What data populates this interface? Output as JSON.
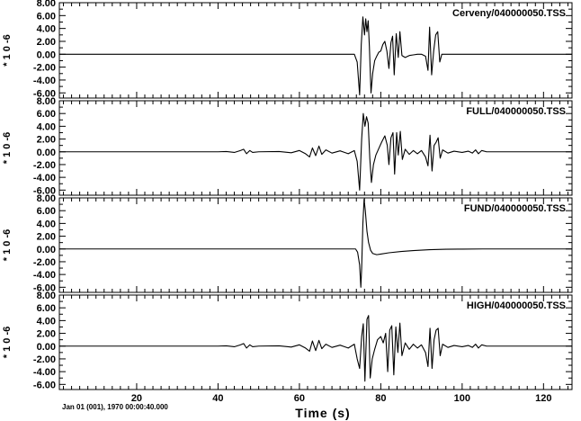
{
  "chart_data": {
    "type": "line",
    "x": {
      "label": "Time (s)",
      "lim": [
        1,
        127
      ],
      "major_ticks": [
        20,
        40,
        60,
        80,
        100,
        120
      ],
      "major_tick_labels": [
        "20",
        "40",
        "60",
        "80",
        "100",
        "120"
      ],
      "minor_step": 2
    },
    "date_label": "Jan 01 (001), 1970 00:00:40.000",
    "y_multiplier_label": "* 1 0 -6",
    "panels": [
      {
        "title": "Cerveny/040000050.TSS",
        "ylim": [
          -6.8,
          8.0
        ],
        "y_ticks": [
          8,
          6,
          4,
          2,
          0,
          -2,
          -4,
          -6
        ],
        "y_tick_labels": [
          "8.00",
          "6.00",
          "4.00",
          "2.00",
          "0.00",
          "-2.00",
          "-4.00",
          "-6.00"
        ],
        "series": [
          {
            "points": [
              [
                1,
                0
              ],
              [
                73.5,
                0
              ],
              [
                74.2,
                -1.2
              ],
              [
                74.8,
                -6.3
              ],
              [
                75.2,
                1.5
              ],
              [
                75.6,
                5.8
              ],
              [
                76.0,
                3.0
              ],
              [
                76.3,
                5.5
              ],
              [
                76.6,
                3.5
              ],
              [
                76.9,
                5.2
              ],
              [
                77.2,
                1.2
              ],
              [
                77.6,
                -6.0
              ],
              [
                78.0,
                -3.0
              ],
              [
                78.5,
                -1.0
              ],
              [
                79.0,
                -0.3
              ],
              [
                79.5,
                0.3
              ],
              [
                80.0,
                0.5
              ],
              [
                80.5,
                1.5
              ],
              [
                81.0,
                2.0
              ],
              [
                81.5,
                0.5
              ],
              [
                82.0,
                -2.2
              ],
              [
                82.5,
                1.8
              ],
              [
                82.9,
                2.8
              ],
              [
                83.3,
                -3.2
              ],
              [
                83.8,
                3.2
              ],
              [
                84.3,
                -0.5
              ],
              [
                84.7,
                3.5
              ],
              [
                85.2,
                -0.2
              ],
              [
                86.0,
                -0.5
              ],
              [
                87.0,
                -0.2
              ],
              [
                88.0,
                -0.1
              ],
              [
                89.0,
                0
              ],
              [
                90.0,
                0
              ],
              [
                91.0,
                -0.3
              ],
              [
                91.6,
                -2.5
              ],
              [
                92.0,
                4.2
              ],
              [
                92.5,
                -3.2
              ],
              [
                93.0,
                0.5
              ],
              [
                93.5,
                3.0
              ],
              [
                94.0,
                3.5
              ],
              [
                94.5,
                -1.2
              ],
              [
                95.0,
                0
              ],
              [
                127,
                0
              ]
            ]
          }
        ]
      },
      {
        "title": "FULL/040000050.TSS",
        "ylim": [
          -6.8,
          8.0
        ],
        "y_ticks": [
          8,
          6,
          4,
          2,
          0,
          -2,
          -4,
          -6
        ],
        "y_tick_labels": [
          "8.00",
          "6.00",
          "4.00",
          "2.00",
          "0.00",
          "-2.00",
          "-4.00",
          "-6.00"
        ],
        "series": [
          {
            "points": [
              [
                1,
                0
              ],
              [
                40,
                0
              ],
              [
                42,
                0.05
              ],
              [
                44,
                -0.1
              ],
              [
                45.5,
                0.2
              ],
              [
                46.3,
                0.4
              ],
              [
                47,
                -0.3
              ],
              [
                47.8,
                0.2
              ],
              [
                48.5,
                -0.1
              ],
              [
                50,
                0
              ],
              [
                55,
                0.05
              ],
              [
                58,
                -0.15
              ],
              [
                60,
                0.2
              ],
              [
                61.5,
                -0.3
              ],
              [
                62.5,
                -0.8
              ],
              [
                63.2,
                0.6
              ],
              [
                64,
                -0.6
              ],
              [
                64.8,
                0.9
              ],
              [
                65.5,
                -0.4
              ],
              [
                66.5,
                0.3
              ],
              [
                68,
                -0.2
              ],
              [
                70,
                0.15
              ],
              [
                72,
                -0.3
              ],
              [
                73.5,
                0.2
              ],
              [
                74.2,
                -1.5
              ],
              [
                74.8,
                -6.0
              ],
              [
                75.3,
                2.0
              ],
              [
                75.7,
                6.0
              ],
              [
                76.1,
                4.0
              ],
              [
                76.5,
                5.5
              ],
              [
                76.9,
                4.5
              ],
              [
                77.3,
                -1.0
              ],
              [
                77.7,
                -4.8
              ],
              [
                78.2,
                -2.0
              ],
              [
                78.8,
                -0.5
              ],
              [
                79.5,
                0.5
              ],
              [
                80.2,
                1.5
              ],
              [
                81.0,
                2.5
              ],
              [
                81.6,
                1.0
              ],
              [
                82.0,
                -2.0
              ],
              [
                82.5,
                2.2
              ],
              [
                83.0,
                3.0
              ],
              [
                83.4,
                -3.5
              ],
              [
                83.9,
                3.0
              ],
              [
                84.3,
                -0.5
              ],
              [
                84.8,
                3.2
              ],
              [
                85.3,
                -1.2
              ],
              [
                86.0,
                0.4
              ],
              [
                87.0,
                -0.4
              ],
              [
                88.0,
                0.2
              ],
              [
                89.0,
                -0.3
              ],
              [
                90.0,
                0.2
              ],
              [
                91.0,
                -0.8
              ],
              [
                91.6,
                -2.2
              ],
              [
                92.1,
                2.6
              ],
              [
                92.6,
                -3.0
              ],
              [
                93.1,
                1.0
              ],
              [
                93.6,
                1.5
              ],
              [
                94.1,
                2.2
              ],
              [
                94.6,
                -1.0
              ],
              [
                95.2,
                0.3
              ],
              [
                96.5,
                -0.2
              ],
              [
                98,
                0.1
              ],
              [
                100,
                -0.1
              ],
              [
                101.5,
                0.1
              ],
              [
                102.5,
                -0.2
              ],
              [
                103.3,
                0.3
              ],
              [
                104,
                -0.3
              ],
              [
                104.8,
                0.2
              ],
              [
                106,
                0
              ],
              [
                127,
                0
              ]
            ]
          }
        ]
      },
      {
        "title": "FUND/040000050.TSS",
        "ylim": [
          -6.8,
          8.0
        ],
        "y_ticks": [
          8,
          6,
          4,
          2,
          0,
          -2,
          -4,
          -6
        ],
        "y_tick_labels": [
          "8.00",
          "6.00",
          "4.00",
          "2.00",
          "0.00",
          "-2.00",
          "-4.00",
          "-6.00"
        ],
        "series": [
          {
            "points": [
              [
                1,
                0
              ],
              [
                73.8,
                0
              ],
              [
                74.3,
                -0.5
              ],
              [
                74.8,
                -2.5
              ],
              [
                75.1,
                -6.0
              ],
              [
                75.3,
                -3.0
              ],
              [
                75.6,
                4.0
              ],
              [
                75.9,
                7.8
              ],
              [
                76.2,
                6.0
              ],
              [
                76.6,
                2.8
              ],
              [
                77.0,
                1.0
              ],
              [
                77.5,
                -0.2
              ],
              [
                78.0,
                -0.7
              ],
              [
                79.0,
                -0.9
              ],
              [
                80.0,
                -0.8
              ],
              [
                82.0,
                -0.6
              ],
              [
                85.0,
                -0.4
              ],
              [
                88.0,
                -0.25
              ],
              [
                92.0,
                -0.12
              ],
              [
                96.0,
                -0.05
              ],
              [
                100.0,
                -0.02
              ],
              [
                105.0,
                0
              ],
              [
                127,
                0
              ]
            ]
          }
        ]
      },
      {
        "title": "HIGH/040000050.TSS",
        "ylim": [
          -6.8,
          8.0
        ],
        "y_ticks": [
          8,
          6,
          4,
          2,
          0,
          -2,
          -4,
          -6
        ],
        "y_tick_labels": [
          "8.00",
          "6.00",
          "4.00",
          "2.00",
          "0.00",
          "-2.00",
          "-4.00",
          "-6.00"
        ],
        "series": [
          {
            "points": [
              [
                1,
                0
              ],
              [
                40,
                0
              ],
              [
                42,
                0.05
              ],
              [
                44,
                -0.1
              ],
              [
                45.5,
                0.2
              ],
              [
                46.3,
                0.4
              ],
              [
                47,
                -0.3
              ],
              [
                47.8,
                0.2
              ],
              [
                48.5,
                -0.1
              ],
              [
                50,
                0
              ],
              [
                55,
                0.05
              ],
              [
                58,
                -0.15
              ],
              [
                60,
                0.2
              ],
              [
                61.5,
                -0.3
              ],
              [
                62.5,
                -0.8
              ],
              [
                63.2,
                0.8
              ],
              [
                64,
                -0.7
              ],
              [
                64.8,
                0.9
              ],
              [
                65.5,
                -0.4
              ],
              [
                66.5,
                0.3
              ],
              [
                68,
                -0.2
              ],
              [
                70,
                0.15
              ],
              [
                72,
                -0.3
              ],
              [
                73.5,
                0.3
              ],
              [
                74.2,
                -2.0
              ],
              [
                74.8,
                -3.5
              ],
              [
                75.3,
                1.5
              ],
              [
                75.7,
                3.5
              ],
              [
                76.1,
                -5.5
              ],
              [
                76.6,
                4.2
              ],
              [
                77.0,
                4.8
              ],
              [
                77.4,
                -5.0
              ],
              [
                77.9,
                -2.0
              ],
              [
                78.5,
                -0.5
              ],
              [
                79.2,
                1.0
              ],
              [
                80.0,
                1.5
              ],
              [
                80.6,
                0.5
              ],
              [
                81.2,
                2.0
              ],
              [
                81.7,
                -4.0
              ],
              [
                82.2,
                2.5
              ],
              [
                82.7,
                3.2
              ],
              [
                83.2,
                -4.5
              ],
              [
                83.7,
                3.0
              ],
              [
                84.2,
                -1.0
              ],
              [
                84.7,
                3.6
              ],
              [
                85.2,
                -1.5
              ],
              [
                86.0,
                0.5
              ],
              [
                87.0,
                -0.5
              ],
              [
                88.0,
                0.3
              ],
              [
                89.0,
                -0.3
              ],
              [
                90.0,
                0.2
              ],
              [
                91.0,
                -1.0
              ],
              [
                91.6,
                -3.2
              ],
              [
                92.1,
                2.8
              ],
              [
                92.6,
                -3.5
              ],
              [
                93.1,
                1.0
              ],
              [
                93.6,
                2.5
              ],
              [
                94.1,
                2.8
              ],
              [
                94.6,
                -1.5
              ],
              [
                95.2,
                0.3
              ],
              [
                96.5,
                -0.2
              ],
              [
                98,
                0.1
              ],
              [
                100,
                -0.1
              ],
              [
                101.5,
                0.1
              ],
              [
                102.5,
                -0.2
              ],
              [
                103.3,
                0.3
              ],
              [
                104,
                -0.3
              ],
              [
                104.8,
                0.2
              ],
              [
                106,
                0
              ],
              [
                127,
                0
              ]
            ]
          }
        ]
      }
    ]
  }
}
